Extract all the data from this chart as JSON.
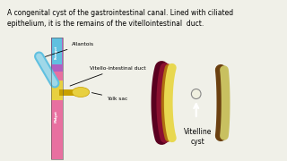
{
  "bg_color": "#f0f0e8",
  "title_line1": "A congenital cyst of the gastrointestinal canal. Lined with ciliated",
  "title_line2": "epithelium, it is the remains of the vitellointestinal  duct.",
  "label_allantois": "Allantois",
  "label_vitello": "Vitello-intestinal duct",
  "label_yolk": "Yolk sac",
  "label_vitelline": "Vitelline\ncyst",
  "color_midgut": "#e870a0",
  "color_hindgut": "#b060c0",
  "color_foregut": "#60c0e0",
  "color_yolk": "#e8d040",
  "color_gut_wall_outer": "#8B0040",
  "color_gut_wall_mid": "#c8a000",
  "color_gut_wall_inner": "#e8d880",
  "color_intestine_outer": "#8B6020",
  "color_intestine_inner": "#c8c870",
  "text_fontsize": 5.5,
  "label_fontsize": 4.2
}
